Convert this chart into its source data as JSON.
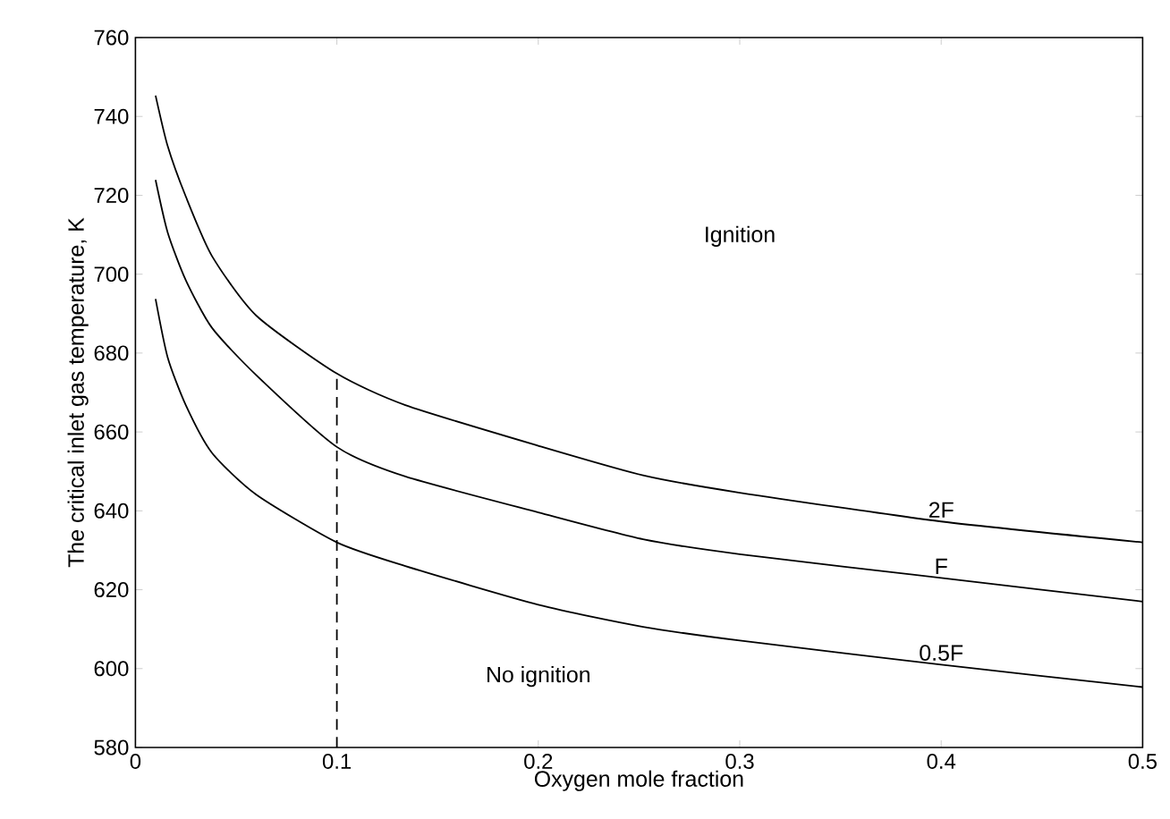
{
  "chart_data": {
    "type": "line",
    "xlabel": "Oxygen mole fraction",
    "ylabel": "The critical inlet gas temperature, K",
    "xlim": [
      0,
      0.5
    ],
    "ylim": [
      580,
      760
    ],
    "xticks": [
      0,
      0.1,
      0.2,
      0.3,
      0.4,
      0.5
    ],
    "yticks": [
      580,
      600,
      620,
      640,
      660,
      680,
      700,
      720,
      740,
      760
    ],
    "grid": false,
    "legend": false,
    "marker": "none",
    "line_style": "solid",
    "x": [
      0.01,
      0.016,
      0.025,
      0.038,
      0.06,
      0.1,
      0.134,
      0.2,
      0.252,
      0.3,
      0.4,
      0.5
    ],
    "series": [
      {
        "name": "2F",
        "color": "#000000",
        "values": [
          745.3,
          732.5,
          719.7,
          704.6,
          689.5,
          674.8,
          666.8,
          656.5,
          649,
          644.6,
          637.3,
          632
        ]
      },
      {
        "name": "F",
        "color": "#000000",
        "values": [
          723.9,
          710.6,
          698.5,
          686.4,
          674.4,
          656.2,
          648.7,
          639.6,
          632.8,
          629,
          623,
          617
        ]
      },
      {
        "name": "0.5F",
        "color": "#000000",
        "values": [
          693.7,
          678.9,
          666.8,
          654.7,
          644.1,
          632,
          626,
          616.2,
          610.6,
          607.1,
          601,
          595.3
        ]
      },
      {
        "color": "#000000",
        "x": [
          0.1,
          0.1
        ],
        "values": [
          580,
          674.8
        ],
        "line_style": "dashed"
      }
    ],
    "annotations": [
      "Ignition",
      "No ignition"
    ]
  }
}
